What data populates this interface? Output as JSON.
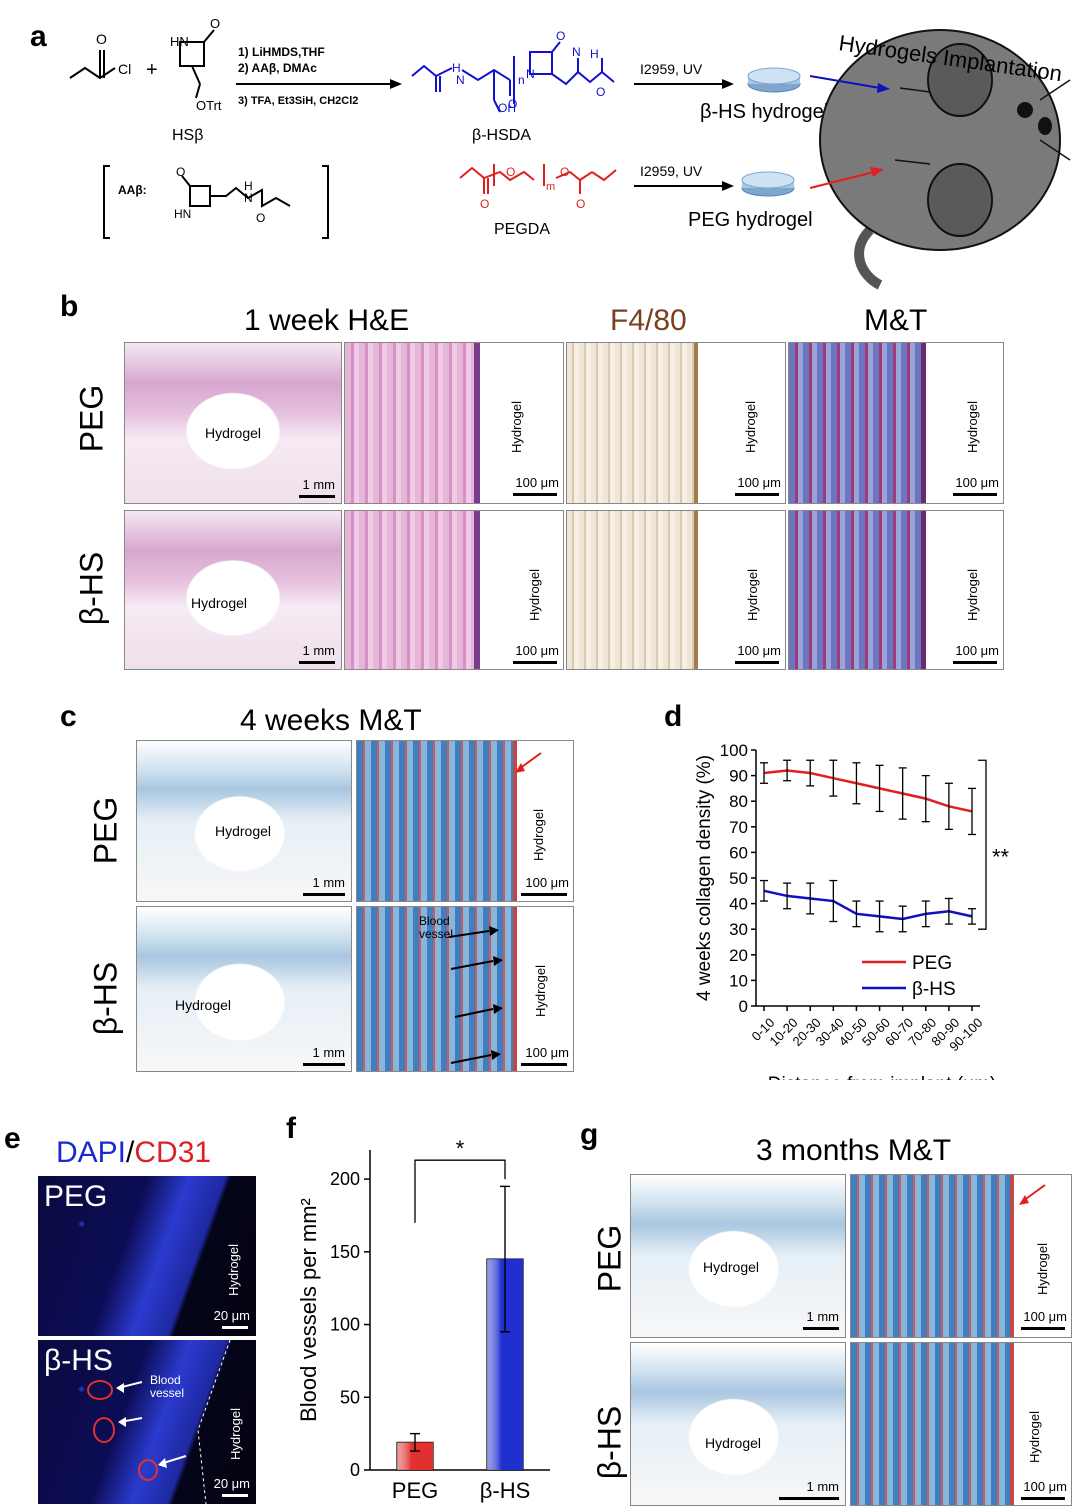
{
  "panels": {
    "a": "a",
    "b": "b",
    "c": "c",
    "d": "d",
    "e": "e",
    "f": "f",
    "g": "g"
  },
  "scheme": {
    "cl": "Cl",
    "plus": "+",
    "hsb": "HSβ",
    "otrt": "OTrt",
    "hn": "HN",
    "o": "O",
    "steps": [
      "1) LiHMDS,THF",
      "2) AAβ, DMAc",
      "3) TFA, Et3SiH, CH2Cl2"
    ],
    "product": "β-HSDA",
    "oh": "OH",
    "n": "n",
    "h": "H",
    "nlabel": "N",
    "aab_label": "AAβ:",
    "pegda": "PEGDA",
    "m": "m",
    "uv1": "I2959, UV",
    "uv2": "I2959, UV",
    "hydrogel1": "β-HS hydrogel",
    "hydrogel2": "PEG hydrogel",
    "implant_title": "Hydrogels Implantation"
  },
  "b": {
    "titles": {
      "he": "1 week H&E",
      "f480": "F4/80",
      "mt": "M&T"
    },
    "rows": [
      "PEG",
      "β-HS"
    ],
    "hydrogel": "Hydrogel",
    "scale_mm": "1 mm",
    "scale_um": "100 μm"
  },
  "c": {
    "title": "4 weeks M&T",
    "rows": [
      "PEG",
      "β-HS"
    ],
    "hydrogel": "Hydrogel",
    "blood_vessel": "Blood vessel",
    "scale_mm": "1 mm",
    "scale_um": "100 μm"
  },
  "e": {
    "title_dapi": "DAPI",
    "slash": "/",
    "title_cd31": "CD31",
    "rows": [
      "PEG",
      "β-HS"
    ],
    "hydrogel": "Hydrogel",
    "blood_vessel": "Blood vessel",
    "scale": "20 μm"
  },
  "g": {
    "title": "3 months M&T",
    "rows": [
      "PEG",
      "β-HS"
    ],
    "hydrogel": "Hydrogel",
    "scale_mm": "1 mm",
    "scale_um": "100 μm"
  },
  "chart_data": [
    {
      "type": "line",
      "panel": "d",
      "xlabel": "Distance from implant (μm)",
      "ylabel": "4 weeks collagen density (%)",
      "categories": [
        "0-10",
        "10-20",
        "20-30",
        "30-40",
        "40-50",
        "50-60",
        "60-70",
        "70-80",
        "80-90",
        "90-100"
      ],
      "ylim": [
        0,
        100
      ],
      "yticks": [
        0,
        10,
        20,
        30,
        40,
        50,
        60,
        70,
        80,
        90,
        100
      ],
      "significance": "**",
      "legend_position": "bottom-right",
      "series": [
        {
          "name": "PEG",
          "color": "#e02020",
          "values": [
            91,
            92,
            91,
            89,
            87,
            85,
            83,
            81,
            78,
            76
          ],
          "errors": [
            4,
            4,
            5,
            7,
            8,
            9,
            10,
            9,
            9,
            9
          ]
        },
        {
          "name": "β-HS",
          "color": "#1010c0",
          "values": [
            45,
            43,
            42,
            41,
            36,
            35,
            34,
            36,
            37,
            35
          ],
          "errors": [
            4,
            5,
            6,
            8,
            5,
            6,
            5,
            5,
            5,
            3
          ]
        }
      ]
    },
    {
      "type": "bar",
      "panel": "f",
      "ylabel": "Blood vessels per mm²",
      "categories": [
        "PEG",
        "β-HS"
      ],
      "values": [
        19,
        145
      ],
      "errors": [
        6,
        50
      ],
      "colors": [
        "#e03030",
        "#2030d0"
      ],
      "ylim": [
        0,
        220
      ],
      "yticks": [
        0,
        50,
        100,
        150,
        200
      ],
      "significance": "*"
    }
  ]
}
